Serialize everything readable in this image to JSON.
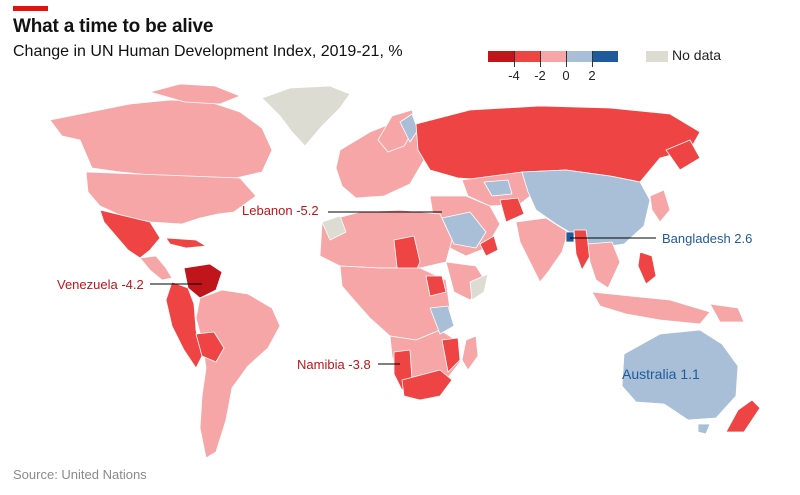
{
  "header": {
    "title": "What a time to be alive",
    "subtitle": "Change in UN Human Development Index, 2019-21, %"
  },
  "legend": {
    "ticks": [
      "-4",
      "-2",
      "0",
      "2"
    ],
    "swatches": [
      "#c0151b",
      "#ef4444",
      "#f6a6a6",
      "#a9bfd8",
      "#1f5a9c"
    ],
    "no_data_label": "No data",
    "no_data_color": "#dddcd3"
  },
  "annotations": {
    "lebanon": "Lebanon -5.2",
    "bangladesh": "Bangladesh 2.6",
    "venezuela": "Venezuela -4.2",
    "namibia": "Namibia -3.8",
    "australia": "Australia 1.1"
  },
  "colors": {
    "deep_red": "#c0151b",
    "red": "#ef4444",
    "pink": "#f6a6a6",
    "light_blue": "#a9bfd8",
    "blue": "#1f5a9c",
    "no_data": "#dddcd3",
    "label_red": "#c0151b",
    "label_blue": "#1f5a9c"
  },
  "source": "Source: United Nations"
}
